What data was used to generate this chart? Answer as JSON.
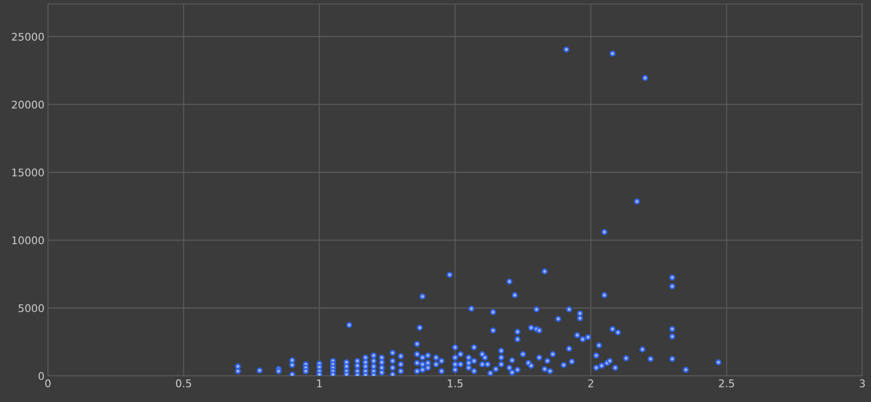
{
  "chart_data": {
    "type": "scatter",
    "marker": "circle",
    "grid": true,
    "xlim": [
      0,
      3
    ],
    "xticks": [
      0,
      0.5,
      1,
      1.5,
      2,
      2.5,
      3
    ],
    "ylim": [
      0,
      27400
    ],
    "yticks": [
      0,
      5000,
      10000,
      15000,
      20000,
      25000
    ],
    "series": [
      {
        "color": "#9db3ea",
        "x": [
          1.91,
          2.08,
          2.2,
          2.17,
          2.05,
          1.48,
          1.83,
          1.7,
          1.72,
          2.3,
          2.3,
          1.38,
          2.05,
          1.11,
          1.37,
          1.56,
          1.64,
          1.8,
          1.92,
          1.96,
          1.96,
          1.88,
          1.78,
          1.8,
          1.81,
          1.73,
          1.73,
          1.64,
          2.08,
          2.1,
          1.95,
          1.97,
          1.99,
          2.3,
          2.3,
          2.3,
          2.19,
          2.22,
          2.13,
          2.35,
          2.47,
          2.03,
          2.02,
          2.04,
          2.06,
          2.07,
          2.09,
          2.02,
          1.9,
          1.92,
          1.93,
          1.86,
          1.84,
          1.83,
          1.85,
          1.81,
          1.77,
          1.78,
          1.75,
          1.71,
          1.7,
          1.71,
          1.73,
          1.67,
          1.67,
          1.67,
          1.65,
          1.63,
          1.62,
          1.61,
          0.7,
          0.7,
          0.78,
          0.85,
          0.85,
          0.9,
          0.9,
          0.9,
          0.95,
          0.95,
          0.95,
          1.0,
          1.0,
          1.0,
          1.0,
          1.05,
          1.05,
          1.05,
          1.05,
          1.05,
          1.1,
          1.1,
          1.1,
          1.1,
          1.14,
          1.14,
          1.14,
          1.14,
          1.17,
          1.17,
          1.17,
          1.17,
          1.17,
          1.2,
          1.2,
          1.2,
          1.2,
          1.2,
          1.23,
          1.23,
          1.23,
          1.23,
          1.27,
          1.27,
          1.27,
          1.27,
          1.3,
          1.3,
          1.3,
          1.36,
          1.36,
          1.36,
          1.36,
          1.38,
          1.38,
          1.38,
          1.4,
          1.4,
          1.4,
          1.43,
          1.43,
          1.45,
          1.45,
          1.5,
          1.5,
          1.5,
          1.5,
          1.52,
          1.52,
          1.55,
          1.55,
          1.55,
          1.57,
          1.57,
          1.57,
          1.6,
          1.6
        ],
        "values": [
          24050,
          23750,
          21950,
          12850,
          10600,
          7450,
          7700,
          6950,
          5950,
          7250,
          6600,
          5850,
          5950,
          3750,
          3550,
          4950,
          4700,
          4900,
          4900,
          4600,
          4250,
          4200,
          3550,
          3450,
          3350,
          3250,
          2700,
          3350,
          3450,
          3200,
          3000,
          2700,
          2850,
          3450,
          2900,
          1250,
          1950,
          1250,
          1300,
          450,
          1000,
          2250,
          1500,
          750,
          950,
          1100,
          600,
          600,
          800,
          2000,
          1050,
          1600,
          1100,
          500,
          350,
          1350,
          950,
          750,
          1600,
          1150,
          600,
          250,
          450,
          1850,
          1350,
          850,
          500,
          200,
          850,
          1350,
          700,
          350,
          400,
          500,
          350,
          1150,
          800,
          100,
          850,
          600,
          350,
          900,
          650,
          350,
          100,
          1100,
          850,
          600,
          350,
          100,
          1000,
          700,
          350,
          100,
          1100,
          750,
          350,
          50,
          1350,
          1000,
          700,
          350,
          50,
          1500,
          1100,
          700,
          350,
          50,
          1350,
          1000,
          600,
          250,
          1700,
          1100,
          600,
          100,
          1450,
          850,
          350,
          2350,
          1600,
          950,
          350,
          1350,
          850,
          450,
          1500,
          950,
          600,
          1350,
          850,
          1100,
          350,
          2100,
          1350,
          850,
          450,
          1600,
          850,
          1350,
          950,
          600,
          2100,
          1100,
          350,
          1600,
          850
        ]
      }
    ]
  }
}
